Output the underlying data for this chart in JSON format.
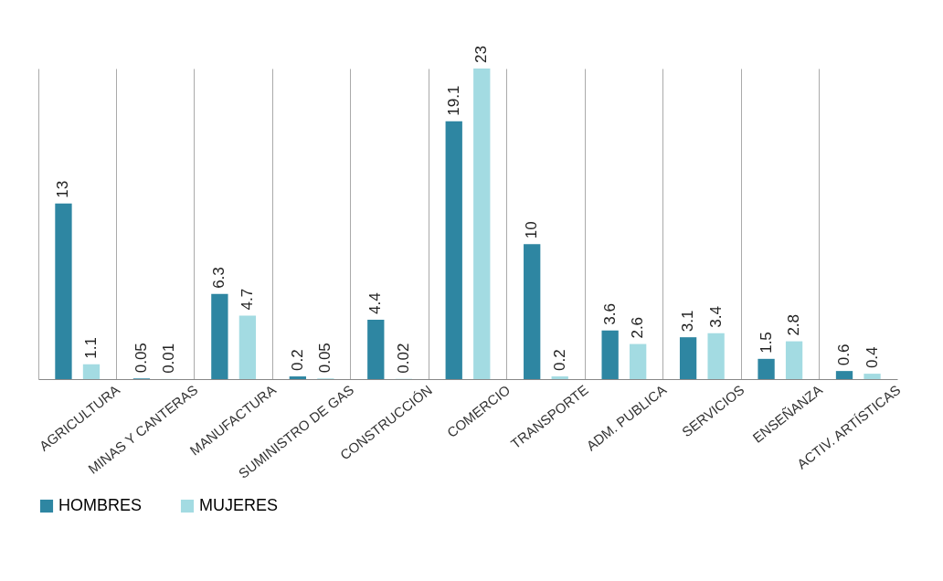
{
  "chart_data": {
    "type": "bar",
    "categories": [
      "AGRICULTURA",
      "MINAS Y CANTERAS",
      "MANUFACTURA",
      "SUMINISTRO DE GAS",
      "CONSTRUCCIÓN",
      "COMERCIO",
      "TRANSPORTE",
      "ADM. PUBLICA",
      "SERVICIOS",
      "ENSEÑANZA",
      "ACTIV. ARTÍSTICAS"
    ],
    "series": [
      {
        "name": "HOMBRES",
        "color": "#2e86a2",
        "values": [
          13,
          0.05,
          6.3,
          0.2,
          4.4,
          19.1,
          10,
          3.6,
          3.1,
          1.5,
          0.6
        ]
      },
      {
        "name": "MUJERES",
        "color": "#a3dbe2",
        "values": [
          1.1,
          0.01,
          4.7,
          0.05,
          0.02,
          23,
          0.2,
          2.6,
          3.4,
          2.8,
          0.4
        ]
      }
    ],
    "data_labels": true,
    "grid": "x",
    "legend": "bottom"
  }
}
